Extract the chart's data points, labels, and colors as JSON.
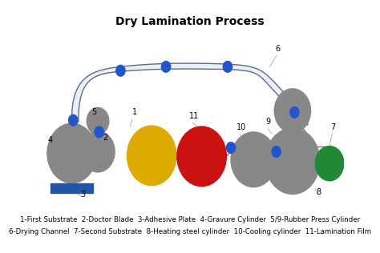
{
  "title": "Dry Lamination Process",
  "title_fontsize": 10,
  "bg_color": "#ffffff",
  "legend_line1": "1-First Substrate  2-Doctor Blade  3-Adhesive Plate  4-Gravure Cylinder  5/9-Rubber Press Cylinder",
  "legend_line2": "6-Drying Channel  7-Second Substrate  8-Heating steel cylinder  10-Cooling cylinder  11-Lamination Film",
  "legend_fontsize": 6.2,
  "blue_dot_color": "#2255cc",
  "gray_color": "#888888",
  "blue_rect_color": "#2255aa",
  "yellow_color": "#ddaa00",
  "red_color": "#cc1111",
  "green_color": "#228833",
  "label_fontsize": 7,
  "channel_face": "#e8f0f8",
  "channel_edge": "#666688"
}
